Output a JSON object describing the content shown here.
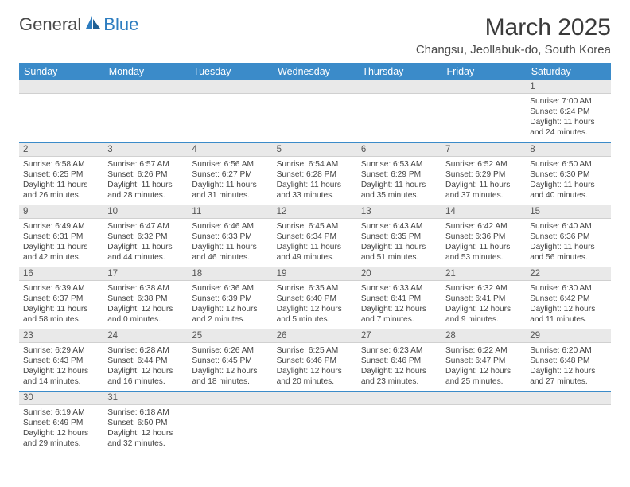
{
  "brand": {
    "part1": "General",
    "part2": "Blue"
  },
  "title": "March 2025",
  "location": "Changsu, Jeollabuk-do, South Korea",
  "colors": {
    "header_bg": "#3b8bc9",
    "header_text": "#ffffff",
    "date_bar_bg": "#e9e9e9",
    "row_border": "#3b8bc9",
    "body_text": "#444444",
    "brand_blue": "#2d7dc0"
  },
  "day_names": [
    "Sunday",
    "Monday",
    "Tuesday",
    "Wednesday",
    "Thursday",
    "Friday",
    "Saturday"
  ],
  "weeks": [
    [
      {
        "date": "",
        "sunrise": "",
        "sunset": "",
        "daylight": ""
      },
      {
        "date": "",
        "sunrise": "",
        "sunset": "",
        "daylight": ""
      },
      {
        "date": "",
        "sunrise": "",
        "sunset": "",
        "daylight": ""
      },
      {
        "date": "",
        "sunrise": "",
        "sunset": "",
        "daylight": ""
      },
      {
        "date": "",
        "sunrise": "",
        "sunset": "",
        "daylight": ""
      },
      {
        "date": "",
        "sunrise": "",
        "sunset": "",
        "daylight": ""
      },
      {
        "date": "1",
        "sunrise": "Sunrise: 7:00 AM",
        "sunset": "Sunset: 6:24 PM",
        "daylight": "Daylight: 11 hours and 24 minutes."
      }
    ],
    [
      {
        "date": "2",
        "sunrise": "Sunrise: 6:58 AM",
        "sunset": "Sunset: 6:25 PM",
        "daylight": "Daylight: 11 hours and 26 minutes."
      },
      {
        "date": "3",
        "sunrise": "Sunrise: 6:57 AM",
        "sunset": "Sunset: 6:26 PM",
        "daylight": "Daylight: 11 hours and 28 minutes."
      },
      {
        "date": "4",
        "sunrise": "Sunrise: 6:56 AM",
        "sunset": "Sunset: 6:27 PM",
        "daylight": "Daylight: 11 hours and 31 minutes."
      },
      {
        "date": "5",
        "sunrise": "Sunrise: 6:54 AM",
        "sunset": "Sunset: 6:28 PM",
        "daylight": "Daylight: 11 hours and 33 minutes."
      },
      {
        "date": "6",
        "sunrise": "Sunrise: 6:53 AM",
        "sunset": "Sunset: 6:29 PM",
        "daylight": "Daylight: 11 hours and 35 minutes."
      },
      {
        "date": "7",
        "sunrise": "Sunrise: 6:52 AM",
        "sunset": "Sunset: 6:29 PM",
        "daylight": "Daylight: 11 hours and 37 minutes."
      },
      {
        "date": "8",
        "sunrise": "Sunrise: 6:50 AM",
        "sunset": "Sunset: 6:30 PM",
        "daylight": "Daylight: 11 hours and 40 minutes."
      }
    ],
    [
      {
        "date": "9",
        "sunrise": "Sunrise: 6:49 AM",
        "sunset": "Sunset: 6:31 PM",
        "daylight": "Daylight: 11 hours and 42 minutes."
      },
      {
        "date": "10",
        "sunrise": "Sunrise: 6:47 AM",
        "sunset": "Sunset: 6:32 PM",
        "daylight": "Daylight: 11 hours and 44 minutes."
      },
      {
        "date": "11",
        "sunrise": "Sunrise: 6:46 AM",
        "sunset": "Sunset: 6:33 PM",
        "daylight": "Daylight: 11 hours and 46 minutes."
      },
      {
        "date": "12",
        "sunrise": "Sunrise: 6:45 AM",
        "sunset": "Sunset: 6:34 PM",
        "daylight": "Daylight: 11 hours and 49 minutes."
      },
      {
        "date": "13",
        "sunrise": "Sunrise: 6:43 AM",
        "sunset": "Sunset: 6:35 PM",
        "daylight": "Daylight: 11 hours and 51 minutes."
      },
      {
        "date": "14",
        "sunrise": "Sunrise: 6:42 AM",
        "sunset": "Sunset: 6:36 PM",
        "daylight": "Daylight: 11 hours and 53 minutes."
      },
      {
        "date": "15",
        "sunrise": "Sunrise: 6:40 AM",
        "sunset": "Sunset: 6:36 PM",
        "daylight": "Daylight: 11 hours and 56 minutes."
      }
    ],
    [
      {
        "date": "16",
        "sunrise": "Sunrise: 6:39 AM",
        "sunset": "Sunset: 6:37 PM",
        "daylight": "Daylight: 11 hours and 58 minutes."
      },
      {
        "date": "17",
        "sunrise": "Sunrise: 6:38 AM",
        "sunset": "Sunset: 6:38 PM",
        "daylight": "Daylight: 12 hours and 0 minutes."
      },
      {
        "date": "18",
        "sunrise": "Sunrise: 6:36 AM",
        "sunset": "Sunset: 6:39 PM",
        "daylight": "Daylight: 12 hours and 2 minutes."
      },
      {
        "date": "19",
        "sunrise": "Sunrise: 6:35 AM",
        "sunset": "Sunset: 6:40 PM",
        "daylight": "Daylight: 12 hours and 5 minutes."
      },
      {
        "date": "20",
        "sunrise": "Sunrise: 6:33 AM",
        "sunset": "Sunset: 6:41 PM",
        "daylight": "Daylight: 12 hours and 7 minutes."
      },
      {
        "date": "21",
        "sunrise": "Sunrise: 6:32 AM",
        "sunset": "Sunset: 6:41 PM",
        "daylight": "Daylight: 12 hours and 9 minutes."
      },
      {
        "date": "22",
        "sunrise": "Sunrise: 6:30 AM",
        "sunset": "Sunset: 6:42 PM",
        "daylight": "Daylight: 12 hours and 11 minutes."
      }
    ],
    [
      {
        "date": "23",
        "sunrise": "Sunrise: 6:29 AM",
        "sunset": "Sunset: 6:43 PM",
        "daylight": "Daylight: 12 hours and 14 minutes."
      },
      {
        "date": "24",
        "sunrise": "Sunrise: 6:28 AM",
        "sunset": "Sunset: 6:44 PM",
        "daylight": "Daylight: 12 hours and 16 minutes."
      },
      {
        "date": "25",
        "sunrise": "Sunrise: 6:26 AM",
        "sunset": "Sunset: 6:45 PM",
        "daylight": "Daylight: 12 hours and 18 minutes."
      },
      {
        "date": "26",
        "sunrise": "Sunrise: 6:25 AM",
        "sunset": "Sunset: 6:46 PM",
        "daylight": "Daylight: 12 hours and 20 minutes."
      },
      {
        "date": "27",
        "sunrise": "Sunrise: 6:23 AM",
        "sunset": "Sunset: 6:46 PM",
        "daylight": "Daylight: 12 hours and 23 minutes."
      },
      {
        "date": "28",
        "sunrise": "Sunrise: 6:22 AM",
        "sunset": "Sunset: 6:47 PM",
        "daylight": "Daylight: 12 hours and 25 minutes."
      },
      {
        "date": "29",
        "sunrise": "Sunrise: 6:20 AM",
        "sunset": "Sunset: 6:48 PM",
        "daylight": "Daylight: 12 hours and 27 minutes."
      }
    ],
    [
      {
        "date": "30",
        "sunrise": "Sunrise: 6:19 AM",
        "sunset": "Sunset: 6:49 PM",
        "daylight": "Daylight: 12 hours and 29 minutes."
      },
      {
        "date": "31",
        "sunrise": "Sunrise: 6:18 AM",
        "sunset": "Sunset: 6:50 PM",
        "daylight": "Daylight: 12 hours and 32 minutes."
      },
      {
        "date": "",
        "sunrise": "",
        "sunset": "",
        "daylight": ""
      },
      {
        "date": "",
        "sunrise": "",
        "sunset": "",
        "daylight": ""
      },
      {
        "date": "",
        "sunrise": "",
        "sunset": "",
        "daylight": ""
      },
      {
        "date": "",
        "sunrise": "",
        "sunset": "",
        "daylight": ""
      },
      {
        "date": "",
        "sunrise": "",
        "sunset": "",
        "daylight": ""
      }
    ]
  ]
}
